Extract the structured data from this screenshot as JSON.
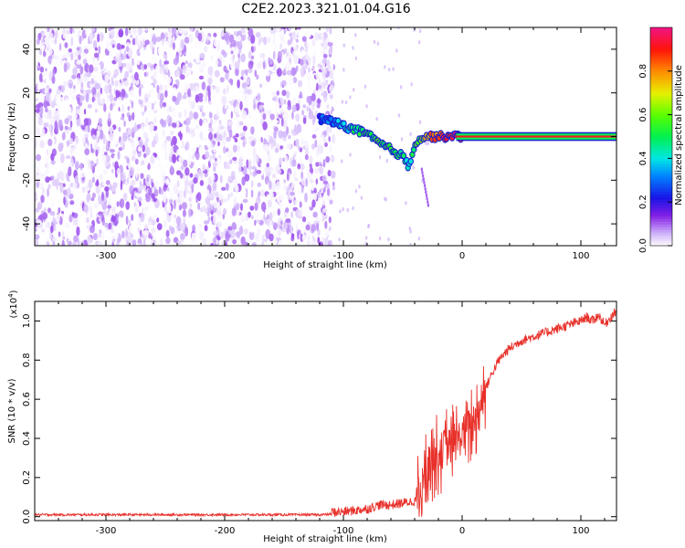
{
  "title": "C2E2.2023.321.01.04.G16",
  "colors": {
    "snr_line": "#e8302a",
    "axis": "#000000",
    "spec_outline": "#1b1fd0"
  },
  "chart_data": [
    {
      "type": "heatmap",
      "xlabel": "Height of straight line (km)",
      "ylabel": "Frequency (Hz)",
      "xlim": [
        -360,
        130
      ],
      "ylim": [
        -50,
        50
      ],
      "x_ticks": [
        -300,
        -200,
        -100,
        0,
        100
      ],
      "x_tick_labels": [
        "-300",
        "-200",
        "-100",
        "0",
        "100"
      ],
      "y_ticks": [
        -40,
        -20,
        0,
        20,
        40
      ],
      "y_tick_labels": [
        "-40",
        "-20",
        "0",
        "20",
        "40"
      ],
      "colorbar": {
        "label": "Normalized spectral amplitude",
        "range": [
          0,
          1
        ],
        "ticks": [
          0,
          0.2,
          0.4,
          0.6,
          0.8
        ],
        "tick_labels": [
          "0.0",
          "0.2",
          "0.4",
          "0.6",
          "0.8"
        ]
      },
      "noise_region_x": [
        -360,
        -108
      ],
      "noise_amplitude_range": [
        0.0,
        0.12
      ],
      "signal_track": {
        "x": [
          -120,
          -110,
          -100,
          -90,
          -80,
          -70,
          -60,
          -50,
          -45,
          -40,
          -35,
          -30,
          -20,
          -10,
          0,
          10,
          50,
          100,
          130
        ],
        "frequency": [
          8,
          7,
          5,
          3,
          1,
          -3,
          -6,
          -9,
          -14,
          -3,
          -1,
          0,
          0,
          0,
          0,
          0,
          0,
          0,
          0
        ],
        "amplitude": [
          0.25,
          0.3,
          0.4,
          0.5,
          0.55,
          0.55,
          0.55,
          0.5,
          0.45,
          0.55,
          0.6,
          0.75,
          0.85,
          0.9,
          0.95,
          1.0,
          1.0,
          1.0,
          1.0
        ]
      }
    },
    {
      "type": "line",
      "xlabel": "Height of straight line (km)",
      "ylabel": "SNR (10 * v/v)",
      "y_scale_label": "(x10",
      "y_scale_exponent": "4",
      "y_scale_suffix": ")",
      "xlim": [
        -360,
        130
      ],
      "ylim": [
        -0.02,
        1.1
      ],
      "x_ticks": [
        -300,
        -200,
        -100,
        0,
        100
      ],
      "x_tick_labels": [
        "-300",
        "-200",
        "-100",
        "0",
        "100"
      ],
      "y_ticks": [
        0.0,
        0.2,
        0.4,
        0.6,
        0.8,
        1.0
      ],
      "y_tick_labels": [
        "0.0",
        "0.2",
        "0.4",
        "0.6",
        "0.8",
        "1.0"
      ],
      "series": [
        {
          "x": [
            -360,
            -300,
            -200,
            -120,
            -100,
            -80,
            -70,
            -60,
            -50,
            -40,
            -35,
            -30,
            -25,
            -20,
            -15,
            -10,
            -5,
            0,
            5,
            10,
            15,
            20,
            25,
            30,
            35,
            40,
            50,
            60,
            70,
            80,
            90,
            100,
            105,
            110,
            115,
            120,
            125,
            130
          ],
          "y": [
            0.01,
            0.01,
            0.01,
            0.01,
            0.015,
            0.03,
            0.05,
            0.05,
            0.06,
            0.07,
            0.12,
            0.25,
            0.3,
            0.32,
            0.35,
            0.36,
            0.38,
            0.42,
            0.45,
            0.5,
            0.56,
            0.66,
            0.73,
            0.79,
            0.83,
            0.86,
            0.9,
            0.92,
            0.94,
            0.96,
            0.98,
            1.0,
            1.02,
            1.0,
            1.03,
            0.98,
            1.02,
            1.05
          ]
        }
      ]
    }
  ]
}
